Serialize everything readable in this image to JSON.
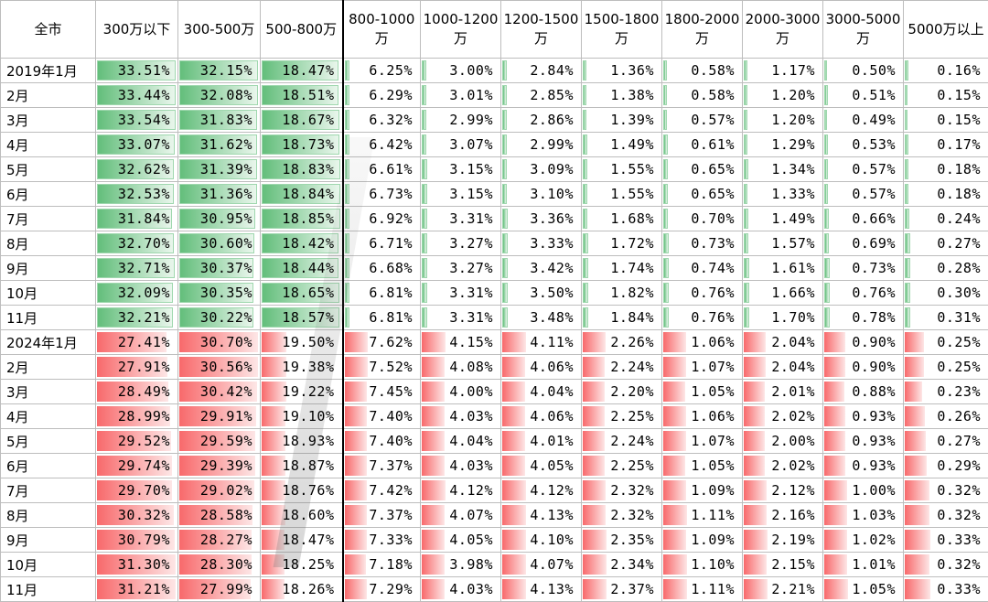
{
  "table": {
    "corner": "全市",
    "columns": [
      "300万以下",
      "300-500万",
      "500-800万",
      "800-1000万",
      "1000-1200万",
      "1200-1500万",
      "1500-1800万",
      "1800-2000万",
      "2000-3000万",
      "3000-5000万",
      "5000万以上"
    ]
  },
  "colors": {
    "group_2019": "#63be7b",
    "group_2024": "#f8696b"
  },
  "chart_data": {
    "type": "table",
    "title": "",
    "columns": [
      "300万以下",
      "300-500万",
      "500-800万",
      "800-1000万",
      "1000-1200万",
      "1200-1500万",
      "1500-1800万",
      "1800-2000万",
      "2000-3000万",
      "3000-5000万",
      "5000万以上"
    ],
    "rows": [
      {
        "label": "2019年1月",
        "group": "2019",
        "values": [
          "33.51%",
          "32.15%",
          "18.47%",
          "6.25%",
          "3.00%",
          "2.84%",
          "1.36%",
          "0.58%",
          "1.17%",
          "0.50%",
          "0.16%"
        ]
      },
      {
        "label": "2月",
        "group": "2019",
        "values": [
          "33.44%",
          "32.08%",
          "18.51%",
          "6.29%",
          "3.01%",
          "2.85%",
          "1.38%",
          "0.58%",
          "1.20%",
          "0.51%",
          "0.15%"
        ]
      },
      {
        "label": "3月",
        "group": "2019",
        "values": [
          "33.54%",
          "31.83%",
          "18.67%",
          "6.32%",
          "2.99%",
          "2.86%",
          "1.39%",
          "0.57%",
          "1.20%",
          "0.49%",
          "0.15%"
        ]
      },
      {
        "label": "4月",
        "group": "2019",
        "values": [
          "33.07%",
          "31.62%",
          "18.73%",
          "6.42%",
          "3.07%",
          "2.99%",
          "1.49%",
          "0.61%",
          "1.29%",
          "0.53%",
          "0.17%"
        ]
      },
      {
        "label": "5月",
        "group": "2019",
        "values": [
          "32.62%",
          "31.39%",
          "18.83%",
          "6.61%",
          "3.15%",
          "3.09%",
          "1.55%",
          "0.65%",
          "1.34%",
          "0.57%",
          "0.18%"
        ]
      },
      {
        "label": "6月",
        "group": "2019",
        "values": [
          "32.53%",
          "31.36%",
          "18.84%",
          "6.73%",
          "3.15%",
          "3.10%",
          "1.55%",
          "0.65%",
          "1.33%",
          "0.57%",
          "0.18%"
        ]
      },
      {
        "label": "7月",
        "group": "2019",
        "values": [
          "31.84%",
          "30.95%",
          "18.85%",
          "6.92%",
          "3.31%",
          "3.36%",
          "1.68%",
          "0.70%",
          "1.49%",
          "0.66%",
          "0.24%"
        ]
      },
      {
        "label": "8月",
        "group": "2019",
        "values": [
          "32.70%",
          "30.60%",
          "18.42%",
          "6.71%",
          "3.27%",
          "3.33%",
          "1.72%",
          "0.73%",
          "1.57%",
          "0.69%",
          "0.27%"
        ]
      },
      {
        "label": "9月",
        "group": "2019",
        "values": [
          "32.71%",
          "30.37%",
          "18.44%",
          "6.68%",
          "3.27%",
          "3.42%",
          "1.74%",
          "0.74%",
          "1.61%",
          "0.73%",
          "0.28%"
        ]
      },
      {
        "label": "10月",
        "group": "2019",
        "values": [
          "32.09%",
          "30.35%",
          "18.65%",
          "6.81%",
          "3.31%",
          "3.50%",
          "1.82%",
          "0.76%",
          "1.66%",
          "0.76%",
          "0.30%"
        ]
      },
      {
        "label": "11月",
        "group": "2019",
        "values": [
          "32.21%",
          "30.22%",
          "18.57%",
          "6.81%",
          "3.31%",
          "3.48%",
          "1.84%",
          "0.76%",
          "1.70%",
          "0.78%",
          "0.31%"
        ]
      },
      {
        "label": "2024年1月",
        "group": "2024",
        "values": [
          "27.41%",
          "30.70%",
          "19.50%",
          "7.62%",
          "4.15%",
          "4.11%",
          "2.26%",
          "1.06%",
          "2.04%",
          "0.90%",
          "0.25%"
        ]
      },
      {
        "label": "2月",
        "group": "2024",
        "values": [
          "27.91%",
          "30.56%",
          "19.38%",
          "7.52%",
          "4.08%",
          "4.06%",
          "2.24%",
          "1.07%",
          "2.04%",
          "0.90%",
          "0.25%"
        ]
      },
      {
        "label": "3月",
        "group": "2024",
        "values": [
          "28.49%",
          "30.42%",
          "19.22%",
          "7.45%",
          "4.00%",
          "4.04%",
          "2.20%",
          "1.05%",
          "2.01%",
          "0.88%",
          "0.23%"
        ]
      },
      {
        "label": "4月",
        "group": "2024",
        "values": [
          "28.99%",
          "29.91%",
          "19.10%",
          "7.40%",
          "4.03%",
          "4.06%",
          "2.25%",
          "1.06%",
          "2.02%",
          "0.93%",
          "0.26%"
        ]
      },
      {
        "label": "5月",
        "group": "2024",
        "values": [
          "29.52%",
          "29.59%",
          "18.93%",
          "7.40%",
          "4.04%",
          "4.01%",
          "2.24%",
          "1.07%",
          "2.00%",
          "0.93%",
          "0.27%"
        ]
      },
      {
        "label": "6月",
        "group": "2024",
        "values": [
          "29.74%",
          "29.39%",
          "18.87%",
          "7.37%",
          "4.03%",
          "4.05%",
          "2.25%",
          "1.05%",
          "2.02%",
          "0.93%",
          "0.29%"
        ]
      },
      {
        "label": "7月",
        "group": "2024",
        "values": [
          "29.70%",
          "29.02%",
          "18.76%",
          "7.42%",
          "4.12%",
          "4.12%",
          "2.32%",
          "1.09%",
          "2.12%",
          "1.00%",
          "0.32%"
        ]
      },
      {
        "label": "8月",
        "group": "2024",
        "values": [
          "30.32%",
          "28.58%",
          "18.60%",
          "7.37%",
          "4.07%",
          "4.13%",
          "2.32%",
          "1.11%",
          "2.16%",
          "1.03%",
          "0.32%"
        ]
      },
      {
        "label": "9月",
        "group": "2024",
        "values": [
          "30.79%",
          "28.27%",
          "18.47%",
          "7.33%",
          "4.05%",
          "4.10%",
          "2.35%",
          "1.09%",
          "2.19%",
          "1.02%",
          "0.33%"
        ]
      },
      {
        "label": "10月",
        "group": "2024",
        "values": [
          "31.30%",
          "28.30%",
          "18.25%",
          "7.18%",
          "3.98%",
          "4.07%",
          "2.34%",
          "1.10%",
          "2.15%",
          "1.01%",
          "0.32%"
        ]
      },
      {
        "label": "11月",
        "group": "2024",
        "values": [
          "31.21%",
          "27.99%",
          "18.26%",
          "7.29%",
          "4.03%",
          "4.13%",
          "2.37%",
          "1.11%",
          "2.21%",
          "1.05%",
          "0.33%"
        ]
      }
    ]
  }
}
